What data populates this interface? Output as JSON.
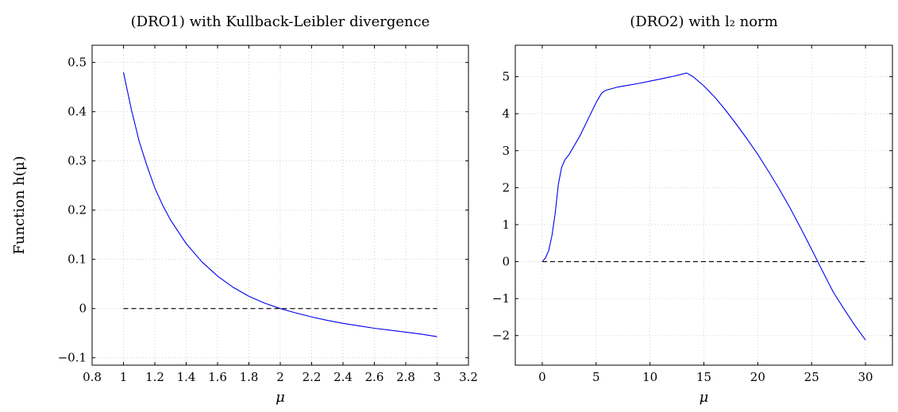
{
  "chart_data": [
    {
      "type": "line",
      "title": "(DRO1) with Kullback-Leibler divergence",
      "xlabel": "μ",
      "ylabel": "Function h(μ)",
      "xlim": [
        0.8,
        3.2
      ],
      "ylim": [
        -0.115,
        0.535
      ],
      "xticks": [
        "0.8",
        "1",
        "1.2",
        "1.4",
        "1.6",
        "1.8",
        "2",
        "2.2",
        "2.4",
        "2.6",
        "2.8",
        "3",
        "3.2"
      ],
      "yticks": [
        "−0.1",
        "0",
        "0.1",
        "0.2",
        "0.3",
        "0.4",
        "0.5"
      ],
      "grid": true,
      "series": [
        {
          "color": "#0000ee",
          "style": "solid",
          "x": [
            1.0,
            1.05,
            1.1,
            1.15,
            1.2,
            1.25,
            1.3,
            1.4,
            1.5,
            1.6,
            1.7,
            1.8,
            1.9,
            2.0,
            2.1,
            2.2,
            2.3,
            2.4,
            2.5,
            2.6,
            2.7,
            2.8,
            2.9,
            3.0
          ],
          "y": [
            0.48,
            0.405,
            0.34,
            0.29,
            0.245,
            0.21,
            0.18,
            0.132,
            0.095,
            0.066,
            0.043,
            0.025,
            0.011,
            0.0,
            -0.009,
            -0.017,
            -0.024,
            -0.03,
            -0.035,
            -0.04,
            -0.044,
            -0.048,
            -0.052,
            -0.057
          ]
        },
        {
          "color": "#000000",
          "style": "dashed",
          "x": [
            1.0,
            3.0
          ],
          "y": [
            0.0,
            0.0
          ]
        }
      ]
    },
    {
      "type": "line",
      "title": "(DRO2) with l₂ norm",
      "xlabel": "μ",
      "ylabel": "",
      "xlim": [
        -2.5,
        32.5
      ],
      "ylim": [
        -2.8,
        5.85
      ],
      "xticks": [
        "0",
        "5",
        "10",
        "15",
        "20",
        "25",
        "30"
      ],
      "yticks": [
        "−2",
        "−1",
        "0",
        "1",
        "2",
        "3",
        "4",
        "5"
      ],
      "grid": true,
      "series": [
        {
          "color": "#0000ee",
          "style": "solid",
          "x": [
            0.0,
            0.3,
            0.6,
            0.9,
            1.2,
            1.5,
            1.8,
            2.1,
            2.5,
            3.0,
            3.5,
            4.0,
            4.5,
            5.0,
            5.5,
            5.8,
            6.0,
            7.0,
            8.0,
            9.0,
            10.0,
            11.0,
            12.0,
            13.0,
            13.4,
            14.0,
            15.0,
            16.0,
            17.0,
            18.0,
            19.0,
            20.0,
            21.0,
            22.0,
            23.0,
            24.0,
            25.0,
            26.0,
            27.0,
            28.0,
            29.0,
            30.0
          ],
          "y": [
            0.0,
            0.1,
            0.3,
            0.7,
            1.3,
            2.1,
            2.55,
            2.75,
            2.9,
            3.15,
            3.4,
            3.7,
            4.0,
            4.3,
            4.55,
            4.62,
            4.64,
            4.72,
            4.77,
            4.82,
            4.88,
            4.94,
            5.0,
            5.07,
            5.1,
            5.0,
            4.75,
            4.45,
            4.1,
            3.72,
            3.32,
            2.9,
            2.44,
            1.96,
            1.45,
            0.9,
            0.33,
            -0.25,
            -0.82,
            -1.28,
            -1.72,
            -2.12
          ]
        },
        {
          "color": "#000000",
          "style": "dashed",
          "x": [
            0.0,
            30.0
          ],
          "y": [
            0.0,
            0.0
          ]
        }
      ]
    }
  ]
}
